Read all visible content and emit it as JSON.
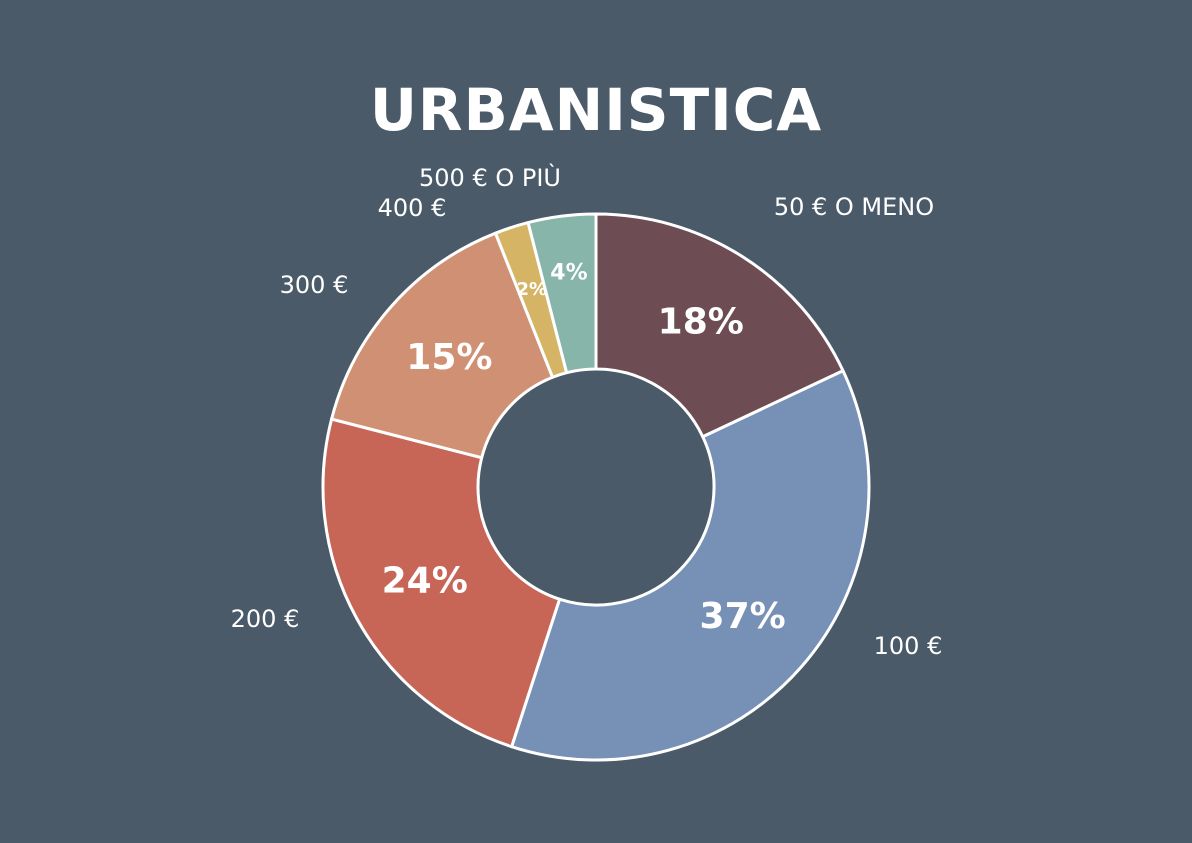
{
  "chart_data": {
    "type": "pie",
    "donut": true,
    "title": "URBANISTICA",
    "start": "top, clockwise",
    "slices": [
      {
        "label": "50 € O MENO",
        "value": 18,
        "value_label": "18%",
        "color": "#6e4c54"
      },
      {
        "label": "100 €",
        "value": 37,
        "value_label": "37%",
        "color": "#7790b5"
      },
      {
        "label": "200 €",
        "value": 24,
        "value_label": "24%",
        "color": "#c76656"
      },
      {
        "label": "300 €",
        "value": 15,
        "value_label": "15%",
        "color": "#d09073"
      },
      {
        "label": "400 €",
        "value": 2,
        "value_label": "2%",
        "color": "#d5b565"
      },
      {
        "label": "500 € O PIÙ",
        "value": 4,
        "value_label": "4%",
        "color": "#87b5aa"
      }
    ]
  },
  "colors": {
    "background": "#4a5a69",
    "text": "#ffffff",
    "slice_border": "#ffffff"
  }
}
